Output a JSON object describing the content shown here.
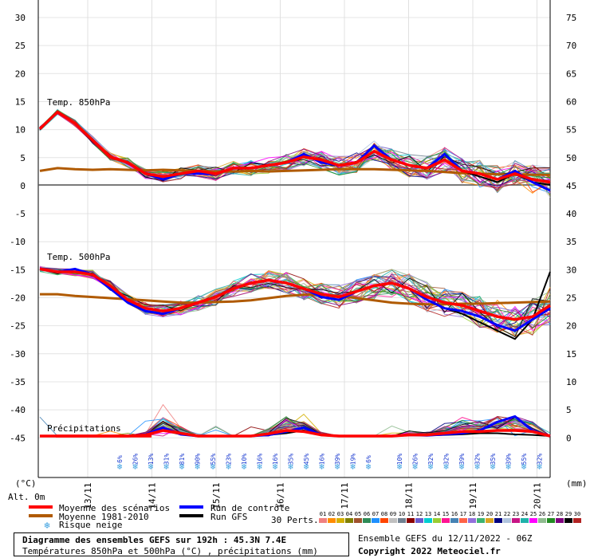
{
  "chart_data": {
    "type": "line",
    "x_dates": [
      "13/11",
      "14/11",
      "15/11",
      "16/11",
      "17/11",
      "18/11",
      "19/11",
      "20/11"
    ],
    "y_left_ticks": [
      "30",
      "25",
      "20",
      "15",
      "10",
      "5",
      "0",
      "-5",
      "-10",
      "-15",
      "-20",
      "-25",
      "-30",
      "-35",
      "-40",
      "-45"
    ],
    "y_right_ticks": [
      "75",
      "70",
      "65",
      "60",
      "55",
      "50",
      "45",
      "40",
      "35",
      "30",
      "25",
      "20",
      "15",
      "10",
      "5",
      "0"
    ],
    "left_unit": "(°C)",
    "right_unit": "(mm)",
    "altitude": "Alt. 0m",
    "sections": {
      "t850": "Temp. 850hPa",
      "t500": "Temp. 500hPa",
      "precip": "Précipitations"
    },
    "x_steps_hours": 192,
    "t850": {
      "mean": [
        10,
        13,
        11,
        8,
        5,
        4,
        2,
        1.5,
        2,
        2.5,
        2,
        3,
        3,
        3.5,
        4,
        5,
        4.5,
        3.5,
        4,
        6,
        4.5,
        3.5,
        3,
        4.5,
        2.5,
        2,
        1,
        2,
        1,
        0.5
      ],
      "control": [
        10,
        13,
        11,
        8,
        5,
        4,
        2,
        1,
        2,
        2,
        2,
        3,
        3,
        3.5,
        4,
        5.5,
        4,
        3.5,
        4,
        7,
        4.5,
        3.5,
        3,
        5.5,
        2.5,
        2,
        1,
        2.5,
        0.5,
        -1
      ],
      "gfs": [
        10,
        13,
        11,
        8,
        5,
        4,
        2,
        1,
        2,
        2,
        2,
        3,
        3,
        3.5,
        4,
        5.5,
        4,
        3.5,
        4,
        7,
        4.5,
        3.5,
        3,
        5.5,
        2.5,
        1.5,
        0.5,
        2,
        0.5,
        0
      ],
      "climatology": [
        2.5,
        3,
        2.8,
        2.7,
        2.8,
        2.7,
        2.6,
        2.7,
        2.6,
        2.5,
        2.4,
        2.4,
        2.5,
        2.4,
        2.5,
        2.6,
        2.7,
        2.8,
        2.8,
        2.8,
        2.7,
        2.6,
        2.5,
        2.3,
        2.1,
        2,
        1.9,
        1.8,
        1.8,
        1.8
      ]
    },
    "t500": {
      "mean": [
        -15,
        -15.5,
        -15.5,
        -16,
        -18,
        -20.5,
        -22,
        -22.5,
        -22,
        -21,
        -20,
        -18.5,
        -17.5,
        -17,
        -17.5,
        -18.5,
        -19.5,
        -20,
        -19,
        -18,
        -17.5,
        -18.5,
        -20,
        -21,
        -21.5,
        -22.5,
        -23.5,
        -24,
        -23.5,
        -21.5
      ],
      "control": [
        -15,
        -15.5,
        -15,
        -16,
        -18.5,
        -21,
        -22.5,
        -23,
        -22,
        -21,
        -20,
        -18.5,
        -17.5,
        -17,
        -17.5,
        -18.5,
        -20,
        -20.5,
        -19,
        -18,
        -17.5,
        -18.5,
        -20.5,
        -22,
        -22.5,
        -23.5,
        -25,
        -26,
        -24,
        -22
      ],
      "gfs": [
        -15,
        -15.5,
        -15,
        -16,
        -18.5,
        -21,
        -22.5,
        -23,
        -22,
        -21,
        -20,
        -18.5,
        -17.5,
        -17,
        -17.5,
        -18.5,
        -20,
        -20.5,
        -19,
        -18,
        -17.5,
        -18.5,
        -20.5,
        -22,
        -23,
        -24.5,
        -26,
        -27.5,
        -24,
        -15.5
      ],
      "climatology": [
        -19.5,
        -19.5,
        -19.8,
        -20,
        -20.2,
        -20.4,
        -20.6,
        -20.8,
        -21,
        -21,
        -20.9,
        -20.8,
        -20.6,
        -20.2,
        -19.8,
        -19.6,
        -19.6,
        -19.8,
        -20.2,
        -20.6,
        -21,
        -21.2,
        -21.3,
        -21.3,
        -21.2,
        -21.2,
        -21.1,
        -21,
        -20.9,
        -20.8
      ]
    },
    "precip_mm": {
      "mean": [
        0,
        0,
        0,
        0,
        0,
        0,
        0.2,
        1,
        0.5,
        0,
        0,
        0,
        0,
        0.4,
        1,
        0.8,
        0.2,
        0,
        0,
        0,
        0,
        0.2,
        0.2,
        0.5,
        0.8,
        0.8,
        1,
        1,
        0.8,
        0
      ],
      "control": [
        0,
        0,
        0,
        0,
        0,
        0,
        0.3,
        1.5,
        0.3,
        0,
        0,
        0,
        0,
        0.2,
        0.8,
        1.5,
        0.2,
        0,
        0,
        0,
        0,
        0.2,
        0.1,
        0.3,
        0.5,
        1,
        2.5,
        3.5,
        1,
        0
      ],
      "gfs": [
        0,
        0,
        0,
        0,
        0,
        0,
        0.2,
        1,
        0.3,
        0,
        0,
        0,
        0,
        0.2,
        0.5,
        1,
        0.2,
        0,
        0,
        0,
        0,
        0.2,
        0.1,
        0.2,
        0.3,
        0.5,
        0.5,
        0.3,
        0.2,
        0
      ]
    },
    "snow_risk_percent": [
      "6%",
      "26%",
      "13%",
      "31%",
      "81%",
      "90%",
      "55%",
      "23%",
      "10%",
      "16%",
      "16%",
      "35%",
      "45%",
      "16%",
      "39%",
      "19%",
      "6%",
      "",
      "10%",
      "26%",
      "32%",
      "32%",
      "39%",
      "32%",
      "35%",
      "39%",
      "55%",
      "32%"
    ],
    "legend": {
      "mean": "Moyenne des scénarios",
      "climatology": "Moyenne 1981-2010",
      "snow": "Risque neige",
      "control": "Run de contrôle",
      "gfs": "Run GFS",
      "members_label": "30 Perts.",
      "members": [
        "01",
        "02",
        "03",
        "04",
        "05",
        "06",
        "07",
        "08",
        "09",
        "10",
        "11",
        "12",
        "13",
        "14",
        "15",
        "16",
        "17",
        "18",
        "19",
        "20",
        "21",
        "22",
        "23",
        "24",
        "25",
        "26",
        "27",
        "28",
        "29",
        "30"
      ]
    },
    "colors": {
      "mean": "#ff0000",
      "climatology": "#b05a00",
      "control": "#0000ff",
      "gfs": "#000000",
      "snow_icon": "#3aa0e0",
      "snow_text": "#1a3ad0",
      "members": [
        "#f08080",
        "#ff8c00",
        "#d4b000",
        "#808000",
        "#a0522d",
        "#2e8b57",
        "#1e90ff",
        "#ff4500",
        "#c0c0c0",
        "#708090",
        "#8b0000",
        "#6a5acd",
        "#00ced1",
        "#9acd32",
        "#ff1493",
        "#4682b4",
        "#ff6347",
        "#9370db",
        "#3cb371",
        "#daa520",
        "#000080",
        "#b0c4de",
        "#c71585",
        "#20b2aa",
        "#ff00ff",
        "#8fbc8f",
        "#228b22",
        "#800080",
        "#000000",
        "#b22222"
      ]
    },
    "title": "",
    "xlabel": "",
    "ylabel": ""
  },
  "footer": {
    "box_title": "Diagramme des ensembles GEFS sur 192h : 45.3N 7.4E",
    "box_subtitle": "Températures 850hPa et 500hPa (°C) , précipitations (mm)",
    "ens_info": "Ensemble GEFS du 12/11/2022 - 06Z",
    "copyright": "Copyright 2022 Meteociel.fr"
  }
}
